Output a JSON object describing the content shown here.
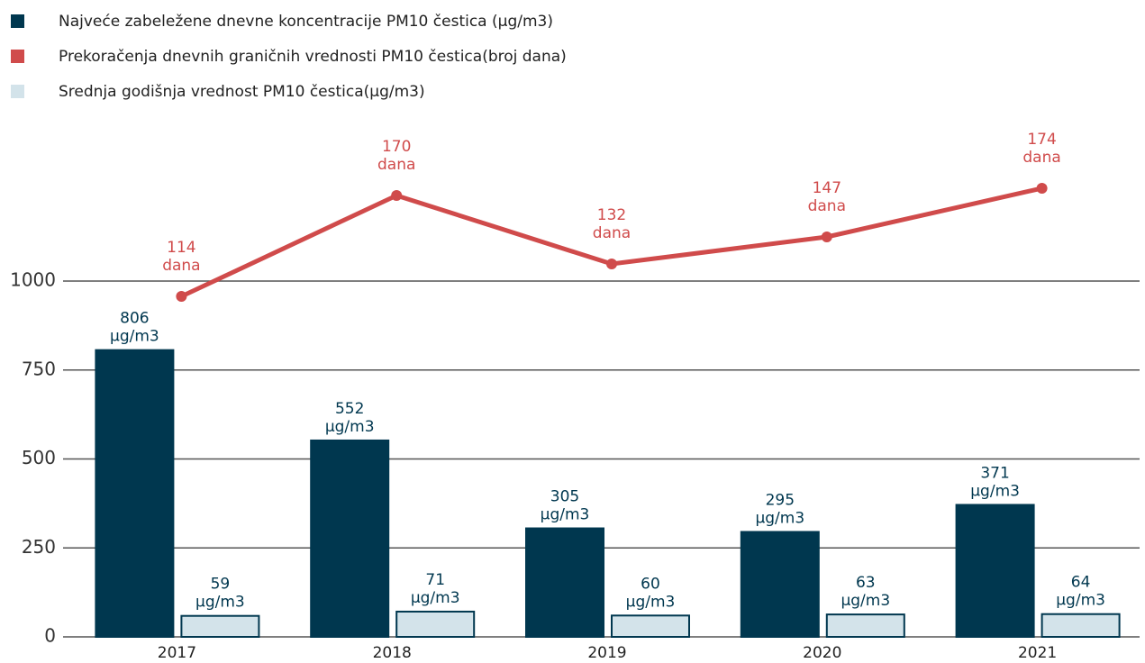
{
  "chart_data": {
    "type": "bar",
    "categories": [
      "2017",
      "2018",
      "2019",
      "2020",
      "2021"
    ],
    "series": [
      {
        "name": "Najveće zabeležene dnevne koncentracije PM10 čestica (µg/m3)",
        "color": "#00374f",
        "type": "bar",
        "values": [
          806,
          552,
          305,
          295,
          371
        ],
        "value_labels": [
          "806 µg/m3",
          "552 µg/m3",
          "305 µg/m3",
          "295 µg/m3",
          "371 µg/m3"
        ]
      },
      {
        "name": "Prekoračenja dnevnih graničnih vrednosti PM10 čestica(broj dana)",
        "color": "#d04b4b",
        "type": "line",
        "axis": "y2",
        "values": [
          114,
          170,
          132,
          147,
          174
        ],
        "value_labels": [
          "114 dana",
          "170 dana",
          "132 dana",
          "147 dana",
          "174 dana"
        ]
      },
      {
        "name": "Srednja godišnja vrednost PM10 čestica(µg/m3)",
        "color": "#d3e3ea",
        "type": "bar",
        "values": [
          59,
          71,
          60,
          63,
          64
        ],
        "value_labels": [
          "59 µg/m3",
          "71 µg/m3",
          "60 µg/m3",
          "63 µg/m3",
          "64 µg/m3"
        ]
      }
    ],
    "ylim": [
      0,
      1000
    ],
    "yticks": [
      0,
      250,
      500,
      750,
      1000
    ],
    "y2lim": [
      -75,
      200
    ],
    "grid": true,
    "legend": "top-left"
  }
}
